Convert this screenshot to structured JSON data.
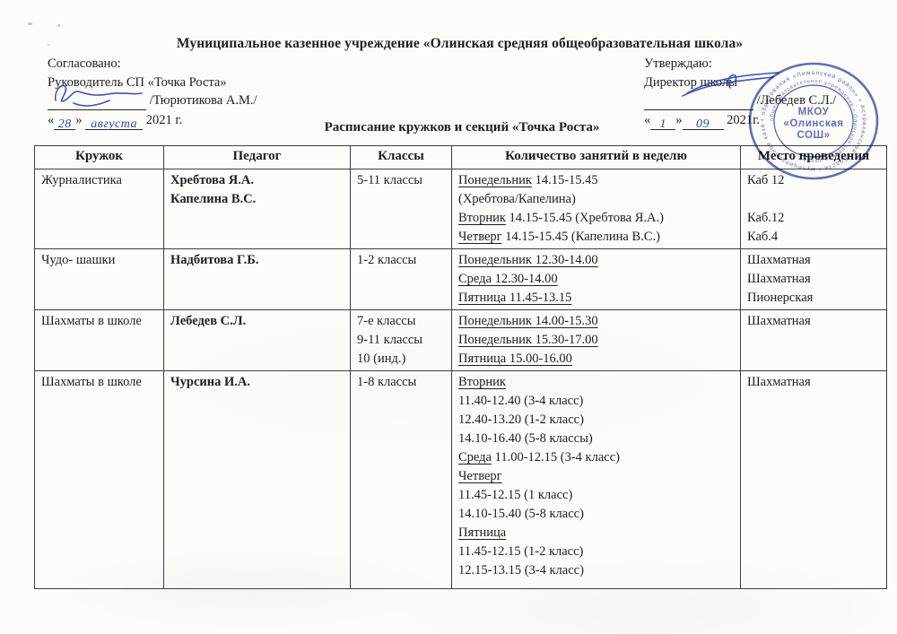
{
  "header": {
    "org_title": "Муниципальное казенное учреждение  «Олинская средняя общеобразовательная школа»",
    "schedule_title": "Расписание кружков и секций «Точка Роста»"
  },
  "punct": {
    "laquo": "«",
    "raquo": "»"
  },
  "approvals": {
    "left": {
      "label": "Согласовано:",
      "role": "Руководитель СП «Точка Роста»",
      "name": "/Тюрютикова А.М./",
      "date_day": "28",
      "date_month": "августа",
      "date_year": "2021 г."
    },
    "right": {
      "label": "Утверждаю:",
      "role": "Директор школы",
      "name": "/Лебедев С.Л./",
      "date_day": "1",
      "date_month": "09",
      "date_year": "2021г."
    }
  },
  "stamp": {
    "center_line1": "МКОУ",
    "center_line2": "«Олинская",
    "center_line3": "СОШ»",
    "ring_text": "• образования «Лиманский район» • Астраханской области • муниципальное казённое",
    "ring_text2": "общеобразовательное учреждение • Олинская средняя школа •"
  },
  "colors": {
    "ink": "#1f1f22",
    "handwriting_blue": "#2d47b2",
    "stamp_blue": "#3f50b0"
  },
  "table": {
    "headers": [
      "Кружок",
      "Педагог",
      "Классы",
      "Количество занятий в неделю",
      "Место проведения"
    ],
    "rows": [
      {
        "club": "Журналистика",
        "teachers": [
          "Хребтова Я.А.",
          "Капелина В.С."
        ],
        "classes": [
          "5-11 классы"
        ],
        "schedule": [
          {
            "u": "Понедельник",
            "t": " 14.15-15.45"
          },
          {
            "u": "",
            "t": "(Хребтова/Капелина)"
          },
          {
            "u": "Вторник",
            "t": " 14.15-15.45 (Хребтова Я.А.)"
          },
          {
            "u": "Четверг",
            "t": " 14.15-15.45 (Капелина В.С.)"
          }
        ],
        "locations": [
          "Каб 12",
          "",
          "Каб.12",
          "Каб.4"
        ]
      },
      {
        "club": "Чудо- шашки",
        "teachers": [
          "Надбитова Г.Б."
        ],
        "classes": [
          "1-2 классы"
        ],
        "schedule": [
          {
            "u": "Понедельник 12.30-14.00",
            "t": ""
          },
          {
            "u": "Среда 12.30-14.00",
            "t": ""
          },
          {
            "u": "Пятница 11.45-13.15",
            "t": ""
          }
        ],
        "locations": [
          "Шахматная",
          "Шахматная",
          "Пионерская"
        ]
      },
      {
        "club": "Шахматы в школе",
        "teachers": [
          "Лебедев С.Л."
        ],
        "classes": [
          "7-е классы",
          "9-11 классы",
          "10 (инд.)"
        ],
        "schedule": [
          {
            "u": "Понедельник 14.00-15.30",
            "t": ""
          },
          {
            "u": "Понедельник 15.30-17.00",
            "t": ""
          },
          {
            "u": "Пятница 15.00-16.00",
            "t": ""
          }
        ],
        "locations": [
          "Шахматная"
        ]
      },
      {
        "club": "Шахматы в школе",
        "teachers": [
          "Чурсина И.А."
        ],
        "classes": [
          "1-8 классы"
        ],
        "schedule": [
          {
            "u": "Вторник",
            "t": ""
          },
          {
            "u": "",
            "t": "11.40-12.40 (3-4 класс)"
          },
          {
            "u": "",
            "t": "12.40-13.20 (1-2 класс)"
          },
          {
            "u": "",
            "t": "14.10-16.40 (5-8 классы)"
          },
          {
            "u": "Среда",
            "t": " 11.00-12.15 (3-4 класс)"
          },
          {
            "u": "Четверг",
            "t": ""
          },
          {
            "u": "",
            "t": "11.45-12.15 (1 класс)"
          },
          {
            "u": "",
            "t": "14.10-15.40 (5-8 класс)"
          },
          {
            "u": "Пятница",
            "t": ""
          },
          {
            "u": "",
            "t": "11.45-12.15 (1-2 класс)"
          },
          {
            "u": "",
            "t": "12.15-13.15 (3-4 класс)"
          }
        ],
        "locations": [
          "Шахматная"
        ]
      }
    ]
  }
}
